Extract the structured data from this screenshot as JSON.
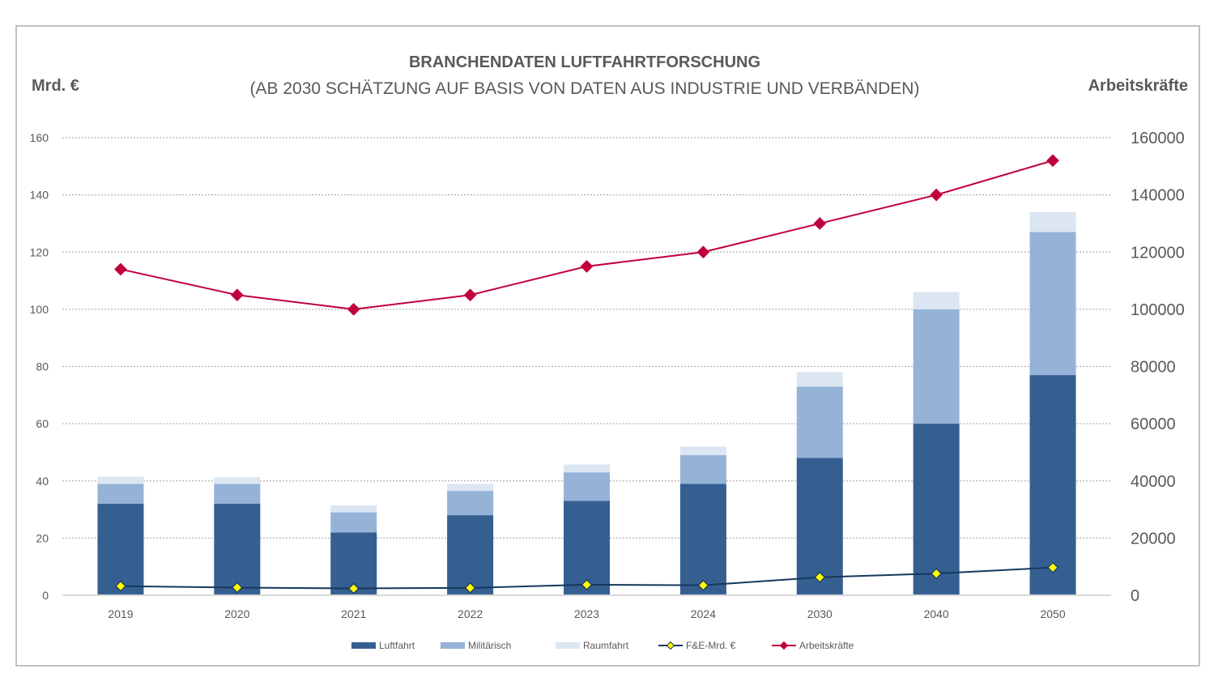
{
  "chart_data": {
    "type": "bar",
    "subtype": "stacked-bar-with-lines-dual-axis",
    "title": "BRANCHENDATEN LUFTFAHRTFORSCHUNG",
    "subtitle": "(AB 2030 SCHÄTZUNG AUF BASIS VON DATEN AUS INDUSTRIE UND VERBÄNDEN)",
    "ylabel": "Mrd. €",
    "ylabel_right": "Arbeitskräfte",
    "xlabel": "",
    "categories": [
      "2019",
      "2020",
      "2021",
      "2022",
      "2023",
      "2024",
      "2030",
      "2040",
      "2050"
    ],
    "ylim": [
      0,
      160
    ],
    "yticks": [
      0,
      20,
      40,
      60,
      80,
      100,
      120,
      140,
      160
    ],
    "ylim_right": [
      0,
      160000
    ],
    "yticks_right": [
      0,
      20000,
      40000,
      60000,
      80000,
      100000,
      120000,
      140000,
      160000
    ],
    "grid": true,
    "legend_position": "bottom",
    "series": [
      {
        "name": "Luftfahrt",
        "type": "bar",
        "axis": "left",
        "color": "#355f91",
        "values": [
          32,
          32,
          22,
          28,
          33,
          39,
          48,
          60,
          77
        ]
      },
      {
        "name": "Militärisch",
        "type": "bar",
        "axis": "left",
        "color": "#95b3d7",
        "values": [
          7,
          7,
          7,
          8.5,
          10,
          10,
          25,
          40,
          50
        ]
      },
      {
        "name": "Raumfahrt",
        "type": "bar",
        "axis": "left",
        "color": "#dce6f2",
        "values": [
          2.5,
          2.3,
          2.4,
          2.5,
          2.7,
          3,
          5,
          6,
          7
        ]
      },
      {
        "name": "F&E-Mrd. €",
        "type": "line",
        "axis": "left",
        "color": "#17375e",
        "marker_color": "#ffff00",
        "values": [
          3.2,
          2.7,
          2.4,
          2.6,
          3.7,
          3.5,
          6.3,
          7.6,
          9.7
        ]
      },
      {
        "name": "Arbeitskräfte",
        "type": "line",
        "axis": "right",
        "color": "#c0003c",
        "marker_color": "#c0003c",
        "values": [
          114000,
          105000,
          100000,
          105000,
          115000,
          120000,
          130000,
          140000,
          152000
        ]
      }
    ]
  }
}
